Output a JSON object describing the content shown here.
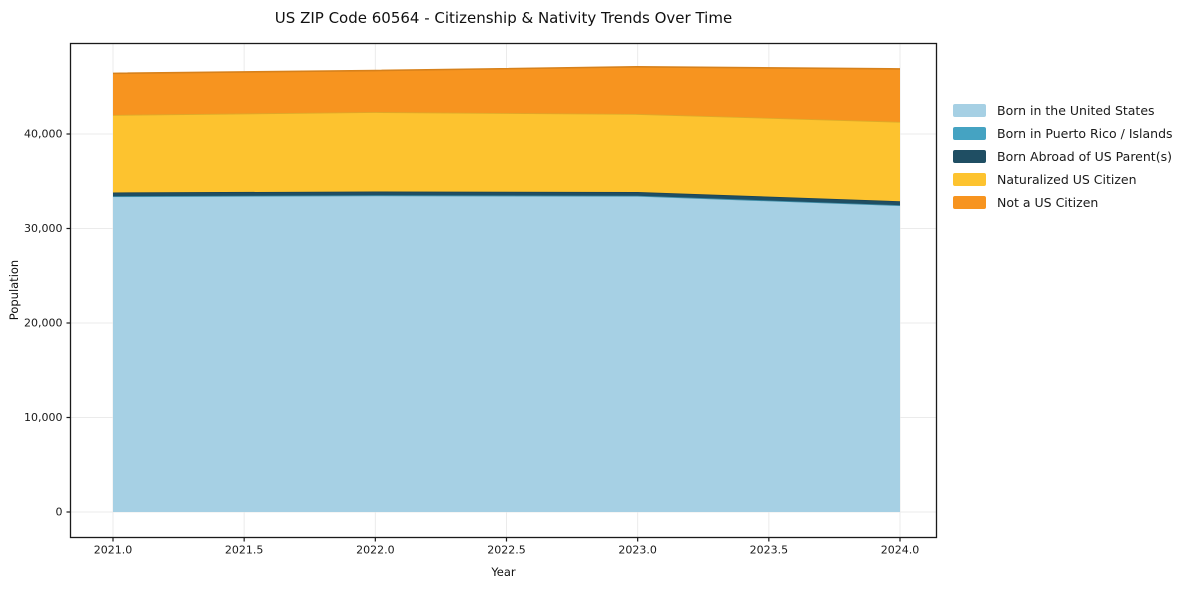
{
  "chart_data": {
    "type": "area",
    "stacked": true,
    "title": "US ZIP Code 60564 - Citizenship & Nativity Trends Over Time",
    "xlabel": "Year",
    "ylabel": "Population",
    "x": [
      2021,
      2022,
      2023,
      2024
    ],
    "series": [
      {
        "name": "Born in the United States",
        "color": "#a6d0e4",
        "values": [
          33400,
          33500,
          33450,
          32450
        ]
      },
      {
        "name": "Born in Puerto Rico / Islands",
        "color": "#45a3c2",
        "values": [
          15,
          15,
          15,
          15
        ]
      },
      {
        "name": "Born Abroad of US Parent(s)",
        "color": "#1f4e63",
        "values": [
          400,
          400,
          400,
          420
        ]
      },
      {
        "name": "Naturalized US Citizen",
        "color": "#fdc32f",
        "values": [
          8200,
          8400,
          8250,
          8400
        ]
      },
      {
        "name": "Not a US Citizen",
        "color": "#f7941f",
        "values": [
          4400,
          4400,
          5000,
          5600
        ]
      }
    ],
    "xticks": [
      2021.0,
      2021.5,
      2022.0,
      2022.5,
      2023.0,
      2023.5,
      2024.0
    ],
    "xtick_labels": [
      "2021.0",
      "2021.5",
      "2022.0",
      "2022.5",
      "2023.0",
      "2023.5",
      "2024.0"
    ],
    "yticks": [
      0,
      10000,
      20000,
      30000,
      40000
    ],
    "ytick_labels": [
      "0",
      "10,000",
      "20,000",
      "30,000",
      "40,000"
    ],
    "legend_position": "right",
    "grid": true,
    "grid_color": "#ebebeb",
    "spine_color": "#1a1a1a",
    "tick_label_color": "#1a1a1a",
    "background_color": "#ffffff"
  }
}
